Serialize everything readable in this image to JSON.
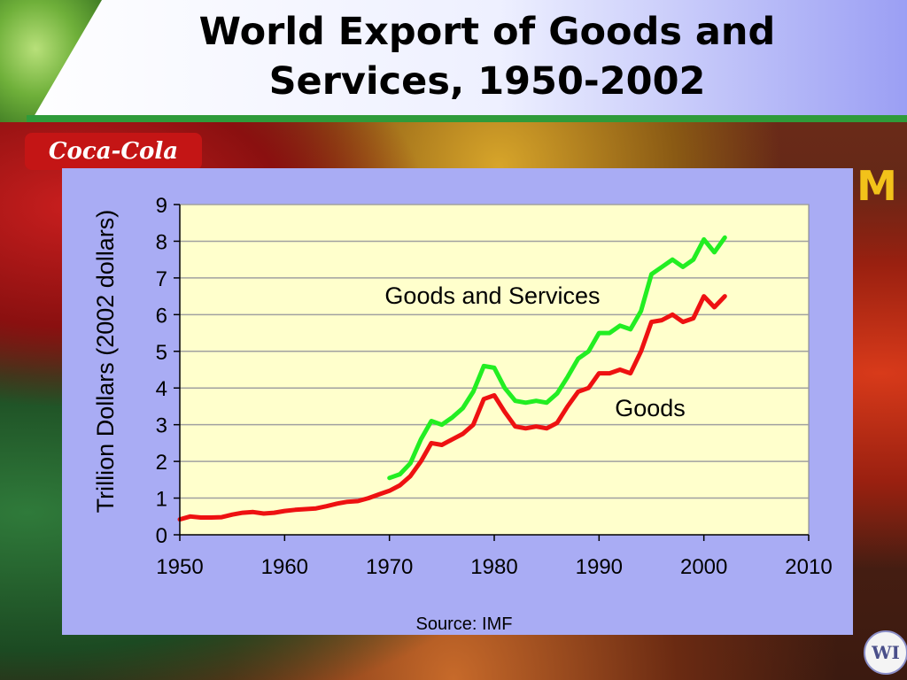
{
  "slide": {
    "title": "World Export of Goods and Services, 1950-2002",
    "logos": [
      "coca-cola-logo",
      "mcdonalds-arches-logo",
      "wm-logo"
    ],
    "logo_text": {
      "coke": "Coca-Cola",
      "arches": "M",
      "wm": "WI"
    }
  },
  "colors": {
    "plot_bg": "#ffffcc",
    "panel_bg": "#a9acf4",
    "goods_and_services": "#22ee22",
    "goods": "#ee1111",
    "grid": "#a0a0a0"
  },
  "chart_data": {
    "type": "line",
    "title": "",
    "xlabel": "",
    "ylabel": "Trillion Dollars (2002 dollars)",
    "xlim": [
      1950,
      2010
    ],
    "ylim": [
      0,
      9
    ],
    "xticks": [
      1950,
      1960,
      1970,
      1980,
      1990,
      2000,
      2010
    ],
    "yticks": [
      0,
      1,
      2,
      3,
      4,
      5,
      6,
      7,
      8,
      9
    ],
    "grid": "horizontal",
    "legend": "none",
    "source": "Source: IMF",
    "annotations": [
      {
        "text": "Goods and Services",
        "series": "Goods and Services"
      },
      {
        "text": "Goods",
        "series": "Goods"
      }
    ],
    "series": [
      {
        "name": "Goods and Services",
        "x": [
          1970,
          1971,
          1972,
          1973,
          1974,
          1975,
          1976,
          1977,
          1978,
          1979,
          1980,
          1981,
          1982,
          1983,
          1984,
          1985,
          1986,
          1987,
          1988,
          1989,
          1990,
          1991,
          1992,
          1993,
          1994,
          1995,
          1996,
          1997,
          1998,
          1999,
          2000,
          2001,
          2002
        ],
        "y": [
          1.55,
          1.65,
          1.95,
          2.6,
          3.1,
          3.0,
          3.2,
          3.45,
          3.9,
          4.6,
          4.55,
          4.0,
          3.65,
          3.6,
          3.65,
          3.6,
          3.85,
          4.3,
          4.8,
          5.0,
          5.5,
          5.5,
          5.7,
          5.6,
          6.1,
          7.1,
          7.3,
          7.5,
          7.3,
          7.5,
          8.05,
          7.7,
          8.1
        ]
      },
      {
        "name": "Goods",
        "x": [
          1950,
          1951,
          1952,
          1953,
          1954,
          1955,
          1956,
          1957,
          1958,
          1959,
          1960,
          1961,
          1962,
          1963,
          1964,
          1965,
          1966,
          1967,
          1968,
          1969,
          1970,
          1971,
          1972,
          1973,
          1974,
          1975,
          1976,
          1977,
          1978,
          1979,
          1980,
          1981,
          1982,
          1983,
          1984,
          1985,
          1986,
          1987,
          1988,
          1989,
          1990,
          1991,
          1992,
          1993,
          1994,
          1995,
          1996,
          1997,
          1998,
          1999,
          2000,
          2001,
          2002
        ],
        "y": [
          0.42,
          0.5,
          0.47,
          0.47,
          0.48,
          0.55,
          0.6,
          0.62,
          0.58,
          0.6,
          0.65,
          0.68,
          0.7,
          0.72,
          0.78,
          0.85,
          0.9,
          0.92,
          1.0,
          1.1,
          1.2,
          1.35,
          1.6,
          2.0,
          2.5,
          2.45,
          2.6,
          2.75,
          3.0,
          3.7,
          3.8,
          3.35,
          2.95,
          2.9,
          2.95,
          2.9,
          3.05,
          3.5,
          3.9,
          4.0,
          4.4,
          4.4,
          4.5,
          4.4,
          5.0,
          5.8,
          5.85,
          6.0,
          5.8,
          5.9,
          6.5,
          6.2,
          6.5
        ]
      }
    ]
  }
}
